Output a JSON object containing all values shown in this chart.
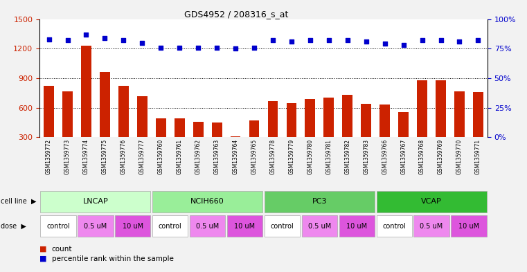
{
  "title": "GDS4952 / 208316_s_at",
  "samples": [
    "GSM1359772",
    "GSM1359773",
    "GSM1359774",
    "GSM1359775",
    "GSM1359776",
    "GSM1359777",
    "GSM1359760",
    "GSM1359761",
    "GSM1359762",
    "GSM1359763",
    "GSM1359764",
    "GSM1359765",
    "GSM1359778",
    "GSM1359779",
    "GSM1359780",
    "GSM1359781",
    "GSM1359782",
    "GSM1359783",
    "GSM1359766",
    "GSM1359767",
    "GSM1359768",
    "GSM1359769",
    "GSM1359770",
    "GSM1359771"
  ],
  "counts": [
    820,
    770,
    1230,
    960,
    820,
    720,
    490,
    490,
    455,
    450,
    310,
    470,
    670,
    650,
    690,
    700,
    730,
    640,
    635,
    555,
    880,
    880,
    770,
    760
  ],
  "percentile_ranks": [
    83,
    82,
    87,
    84,
    82,
    80,
    76,
    76,
    76,
    76,
    75,
    76,
    82,
    81,
    82,
    82,
    82,
    81,
    79,
    78,
    82,
    82,
    81,
    82
  ],
  "cell_lines": [
    {
      "label": "LNCAP",
      "start": 0,
      "end": 6
    },
    {
      "label": "NCIH660",
      "start": 6,
      "end": 12
    },
    {
      "label": "PC3",
      "start": 12,
      "end": 18
    },
    {
      "label": "VCAP",
      "start": 18,
      "end": 24
    }
  ],
  "cell_line_colors": [
    "#ccffcc",
    "#99ee99",
    "#66cc66",
    "#33bb33"
  ],
  "doses": [
    {
      "label": "control",
      "start": 0,
      "end": 2
    },
    {
      "label": "0.5 uM",
      "start": 2,
      "end": 4
    },
    {
      "label": "10 uM",
      "start": 4,
      "end": 6
    },
    {
      "label": "control",
      "start": 6,
      "end": 8
    },
    {
      "label": "0.5 uM",
      "start": 8,
      "end": 10
    },
    {
      "label": "10 uM",
      "start": 10,
      "end": 12
    },
    {
      "label": "control",
      "start": 12,
      "end": 14
    },
    {
      "label": "0.5 uM",
      "start": 14,
      "end": 16
    },
    {
      "label": "10 uM",
      "start": 16,
      "end": 18
    },
    {
      "label": "control",
      "start": 18,
      "end": 20
    },
    {
      "label": "0.5 uM",
      "start": 20,
      "end": 22
    },
    {
      "label": "10 uM",
      "start": 22,
      "end": 24
    }
  ],
  "dose_colors": {
    "control": "#ffffff",
    "0.5 uM": "#ee88ee",
    "10 uM": "#dd55dd"
  },
  "bar_color": "#cc2200",
  "dot_color": "#0000cc",
  "left_ylim": [
    300,
    1500
  ],
  "right_ylim": [
    0,
    100
  ],
  "left_yticks": [
    300,
    600,
    900,
    1200,
    1500
  ],
  "right_yticks": [
    0,
    25,
    50,
    75,
    100
  ],
  "grid_values": [
    600,
    900,
    1200
  ],
  "bg_color": "#f2f2f2",
  "plot_bg": "#ffffff",
  "xlabels_bg": "#d8d8d8"
}
